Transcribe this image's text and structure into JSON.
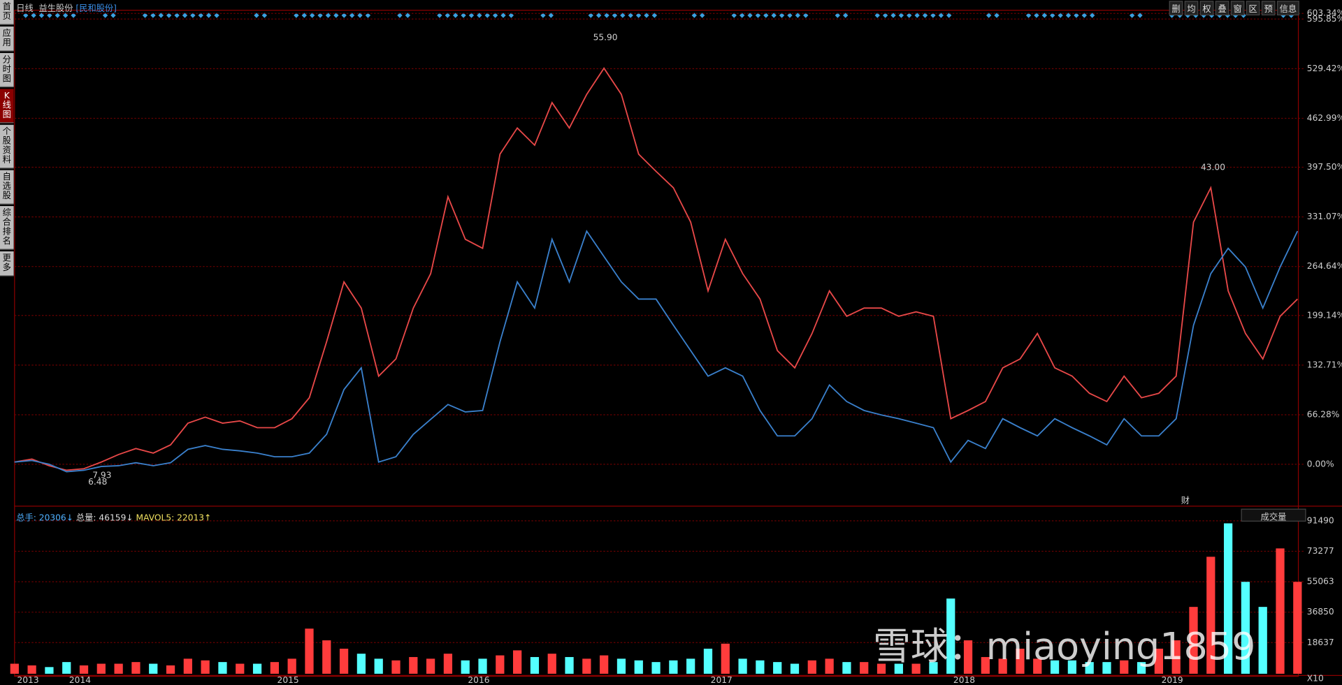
{
  "header": {
    "period": "日线",
    "stock": "益生股份",
    "compare": "[民和股份]"
  },
  "sidebar": [
    "首页",
    "应用",
    "分时图",
    "K线图",
    "个股资料",
    "自选股",
    "综合排名",
    "更多"
  ],
  "toolbar": [
    "删",
    "均",
    "权",
    "叠",
    "窗",
    "区",
    "预",
    "信息"
  ],
  "volume_panel": {
    "total_hands": "总手: 20306↓",
    "total_volume": "总量: 46159↓",
    "mavol": "MAVOL5: 22013↑",
    "indicator": "成交量",
    "unit": "X10"
  },
  "watermark": "雪球：miaoying1859",
  "chart_data": [
    {
      "type": "line",
      "annotations": [
        "55.90",
        "43.00",
        "7.93",
        "6.48",
        "财"
      ],
      "categories": [
        "2013",
        null,
        null,
        "2014",
        null,
        null,
        null,
        null,
        null,
        null,
        null,
        null,
        null,
        null,
        null,
        "2015",
        null,
        null,
        null,
        null,
        null,
        null,
        null,
        null,
        null,
        null,
        "2016",
        null,
        null,
        null,
        null,
        null,
        null,
        null,
        null,
        null,
        null,
        null,
        null,
        null,
        "2017",
        null,
        null,
        null,
        null,
        null,
        null,
        null,
        null,
        null,
        null,
        null,
        null,
        null,
        "2018",
        null,
        null,
        null,
        null,
        null,
        null,
        null,
        null,
        null,
        null,
        null,
        "2019",
        null,
        null,
        null,
        null,
        null,
        null,
        null,
        null
      ],
      "series": [
        {
          "color": "#e84848",
          "values": [
            3,
            7,
            -2,
            -8,
            -6,
            3,
            13,
            21,
            15,
            26,
            55,
            63,
            55,
            58,
            49,
            49,
            61,
            89,
            164,
            244,
            209,
            118,
            141,
            209,
            255,
            358,
            301,
            289,
            415,
            450,
            427,
            484,
            450,
            495,
            530,
            495,
            415,
            392,
            370,
            324,
            232,
            301,
            255,
            221,
            152,
            129,
            175,
            232,
            198,
            209,
            209,
            198,
            204,
            198,
            61,
            72,
            84,
            129,
            141,
            175,
            129,
            118,
            95,
            84,
            118,
            89,
            95,
            118,
            324,
            370,
            232,
            175,
            141,
            198,
            221
          ]
        },
        {
          "color": "#3a80cc",
          "values": [
            3,
            5,
            0,
            -10,
            -8,
            -3,
            -2,
            2,
            -2,
            2,
            20,
            25,
            20,
            18,
            15,
            10,
            10,
            15,
            40,
            100,
            129,
            3,
            10,
            40,
            60,
            80,
            70,
            72,
            164,
            244,
            209,
            301,
            244,
            312,
            278,
            244,
            221,
            221,
            186,
            152,
            118,
            129,
            118,
            72,
            38,
            38,
            61,
            106,
            84,
            72,
            66,
            61,
            55,
            49,
            3,
            32,
            21,
            61,
            49,
            38,
            61,
            49,
            38,
            26,
            61,
            38,
            38,
            61,
            186,
            255,
            289,
            264,
            209,
            264,
            312
          ]
        }
      ],
      "ylim": [
        -53.8,
        605.3
      ],
      "yticks": [
        {
          "value": 603.34,
          "label": "603.34%"
        },
        {
          "value": 595.85,
          "label": "595.85%"
        },
        {
          "value": 529.42,
          "label": "529.42%"
        },
        {
          "value": 462.99,
          "label": "462.99%"
        },
        {
          "value": 397.5,
          "label": "397.50%"
        },
        {
          "value": 331.07,
          "label": "331.07%"
        },
        {
          "value": 264.64,
          "label": "264.64%"
        },
        {
          "value": 199.14,
          "label": "199.14%"
        },
        {
          "value": 132.71,
          "label": "132.71%"
        },
        {
          "value": 66.28,
          "label": "66.28%"
        },
        {
          "value": 0,
          "label": "0.00%"
        }
      ],
      "grid": true
    },
    {
      "type": "bar",
      "colors": {
        "up": "#ff3c3c",
        "down": "#54ffff"
      },
      "values": [
        6000,
        5000,
        4000,
        7000,
        5000,
        6000,
        6000,
        7000,
        6000,
        5000,
        9000,
        8000,
        7000,
        6000,
        6000,
        7000,
        9000,
        27000,
        20000,
        15000,
        12000,
        9000,
        8000,
        10000,
        9000,
        12000,
        8000,
        9000,
        11000,
        14000,
        10000,
        12000,
        10000,
        9000,
        11000,
        9000,
        8000,
        7000,
        8000,
        9000,
        15000,
        18000,
        9000,
        8000,
        7000,
        6000,
        8000,
        9000,
        7000,
        7000,
        6000,
        6000,
        6000,
        7000,
        45000,
        20000,
        10000,
        9000,
        15000,
        9000,
        8000,
        8000,
        7000,
        7000,
        8000,
        7000,
        15000,
        20000,
        40000,
        70000,
        90000,
        55000,
        40000,
        75000,
        55000
      ],
      "ylim": [
        0,
        96180
      ],
      "yticks": [
        91490,
        73277,
        55063,
        36850,
        18637
      ],
      "grid": true
    }
  ]
}
